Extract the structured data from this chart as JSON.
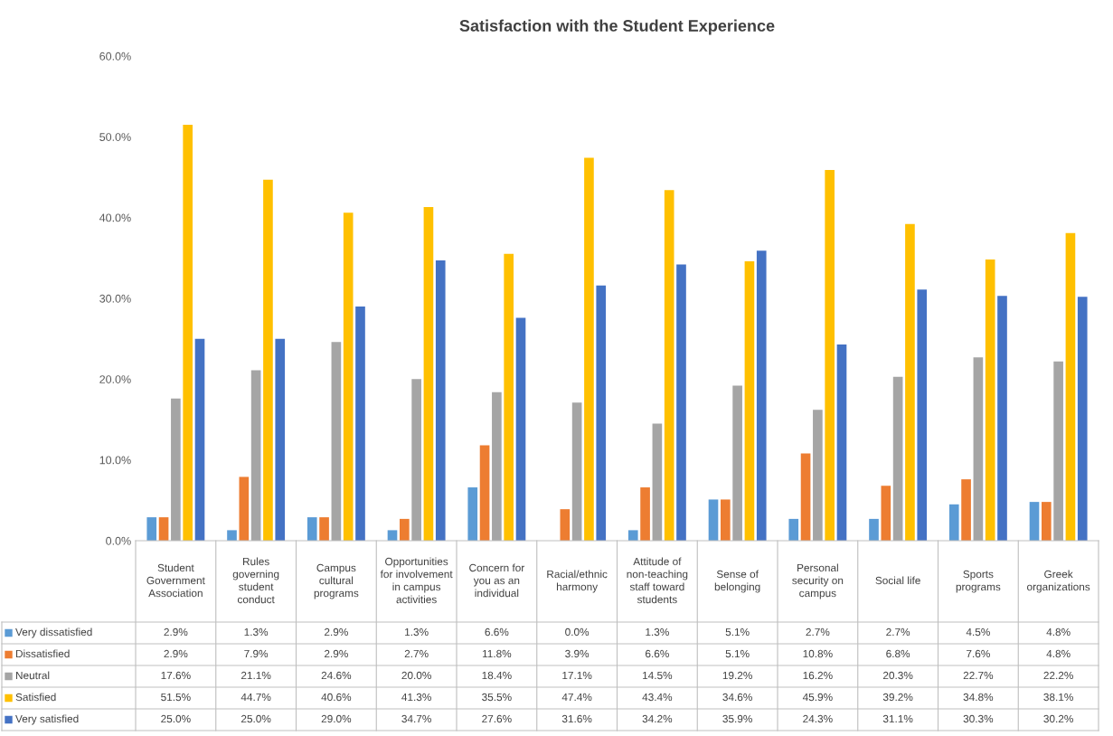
{
  "chart_data": {
    "type": "bar",
    "title": "Satisfaction with the Student Experience",
    "categories": [
      "Student Government Association",
      "Rules governing student conduct",
      "Campus cultural programs",
      "Opportunities for involvement in campus activities",
      "Concern for you as an individual",
      "Racial/ethnic harmony",
      "Attitude of non-teaching staff toward students",
      "Sense of belonging",
      "Personal security on campus",
      "Social life",
      "Sports programs",
      "Greek organizations"
    ],
    "series": [
      {
        "name": "Very dissatisfied",
        "color": "#5b9bd5",
        "values": [
          2.9,
          1.3,
          2.9,
          1.3,
          6.6,
          0.0,
          1.3,
          5.1,
          2.7,
          2.7,
          4.5,
          4.8
        ],
        "value_labels": [
          "2.9%",
          "1.3%",
          "2.9%",
          "1.3%",
          "6.6%",
          "0.0%",
          "1.3%",
          "5.1%",
          "2.7%",
          "2.7%",
          "4.5%",
          "4.8%"
        ]
      },
      {
        "name": "Dissatisfied",
        "color": "#ed7d31",
        "values": [
          2.9,
          7.9,
          2.9,
          2.7,
          11.8,
          3.9,
          6.6,
          5.1,
          10.8,
          6.8,
          7.6,
          4.8
        ],
        "value_labels": [
          "2.9%",
          "7.9%",
          "2.9%",
          "2.7%",
          "11.8%",
          "3.9%",
          "6.6%",
          "5.1%",
          "10.8%",
          "6.8%",
          "7.6%",
          "4.8%"
        ]
      },
      {
        "name": "Neutral",
        "color": "#a5a5a5",
        "values": [
          17.6,
          21.1,
          24.6,
          20.0,
          18.4,
          17.1,
          14.5,
          19.2,
          16.2,
          20.3,
          22.7,
          22.2
        ],
        "value_labels": [
          "17.6%",
          "21.1%",
          "24.6%",
          "20.0%",
          "18.4%",
          "17.1%",
          "14.5%",
          "19.2%",
          "16.2%",
          "20.3%",
          "22.7%",
          "22.2%"
        ]
      },
      {
        "name": "Satisfied",
        "color": "#ffc000",
        "values": [
          51.5,
          44.7,
          40.6,
          41.3,
          35.5,
          47.4,
          43.4,
          34.6,
          45.9,
          39.2,
          34.8,
          38.1
        ],
        "value_labels": [
          "51.5%",
          "44.7%",
          "40.6%",
          "41.3%",
          "35.5%",
          "47.4%",
          "43.4%",
          "34.6%",
          "45.9%",
          "39.2%",
          "34.8%",
          "38.1%"
        ]
      },
      {
        "name": "Very satisfied",
        "color": "#4472c4",
        "values": [
          25.0,
          25.0,
          29.0,
          34.7,
          27.6,
          31.6,
          34.2,
          35.9,
          24.3,
          31.1,
          30.3,
          30.2
        ],
        "value_labels": [
          "25.0%",
          "25.0%",
          "29.0%",
          "34.7%",
          "27.6%",
          "31.6%",
          "34.2%",
          "35.9%",
          "24.3%",
          "31.1%",
          "30.3%",
          "30.2%"
        ]
      }
    ],
    "ylim": [
      0,
      60
    ],
    "yticks": [
      {
        "value": 0,
        "label": "0.0%"
      },
      {
        "value": 10,
        "label": "10.0%"
      },
      {
        "value": 20,
        "label": "20.0%"
      },
      {
        "value": 30,
        "label": "30.0%"
      },
      {
        "value": 40,
        "label": "40.0%"
      },
      {
        "value": 50,
        "label": "50.0%"
      },
      {
        "value": 60,
        "label": "60.0%"
      }
    ],
    "grid": false,
    "legend": "bottom left"
  }
}
